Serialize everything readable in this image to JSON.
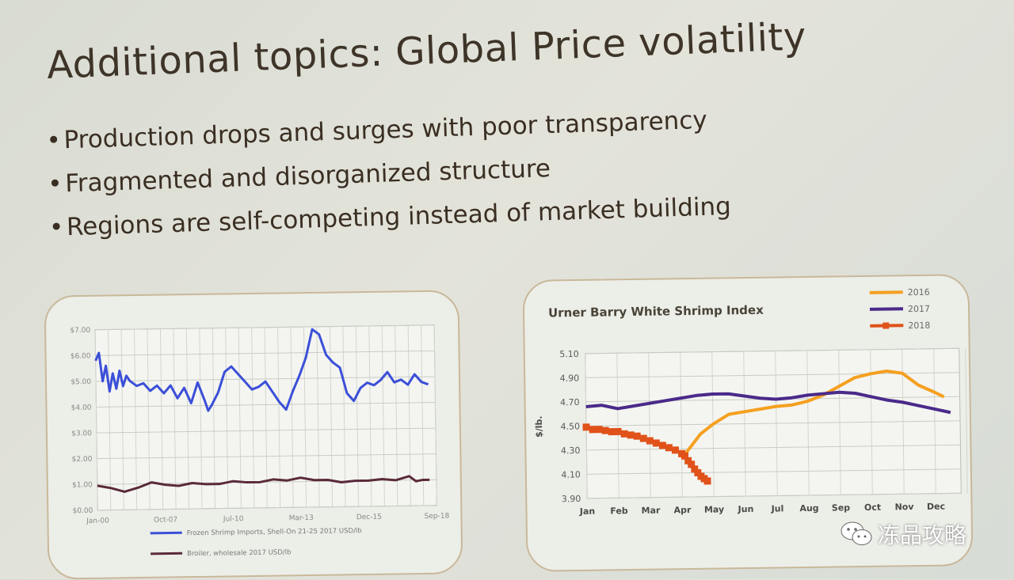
{
  "slide": {
    "title": "Additional topics: Global Price volatility",
    "bullets": [
      "Production drops and surges with poor transparency",
      "Fragmented and disorganized structure",
      "Regions are self-competing instead of market building"
    ]
  },
  "watermark": {
    "text": "冻品攻略",
    "icon": "wechat-icon"
  },
  "colors": {
    "blue": "#3b4fd8",
    "maroon": "#5a2a3a",
    "orange": "#f5a020",
    "purple": "#4a2a8a",
    "red": "#e0521a"
  },
  "chart_data": [
    {
      "type": "line",
      "title": "",
      "yticks": [
        "$7.00",
        "$6.00",
        "$5.00",
        "$4.00",
        "$3.00",
        "$2.00",
        "$1.00",
        "$0.00"
      ],
      "ylim": [
        0,
        7
      ],
      "xticks": [
        "Jan-00",
        "Oct-07",
        "Jul-10",
        "Mar-13",
        "Dec-15",
        "Sep-18"
      ],
      "xlim": [
        0,
        100
      ],
      "series": [
        {
          "name": "Frozen Shrimp Imports, Shell-On 21-25 2017 USD/lb",
          "color": "#3b4fd8",
          "x": [
            0,
            1,
            2,
            3,
            4,
            5,
            6,
            7,
            8,
            9,
            10,
            12,
            14,
            16,
            18,
            20,
            22,
            24,
            26,
            28,
            30,
            32,
            33,
            34,
            36,
            38,
            40,
            42,
            44,
            46,
            48,
            50,
            52,
            54,
            56,
            58,
            60,
            62,
            64,
            65,
            66,
            68,
            70,
            72,
            74,
            76,
            78,
            80,
            82,
            84,
            86,
            88,
            90,
            92,
            94,
            96,
            98
          ],
          "y": [
            5.8,
            6.1,
            5.0,
            5.6,
            4.6,
            5.3,
            4.7,
            5.4,
            4.8,
            5.2,
            5.0,
            4.8,
            4.9,
            4.6,
            4.8,
            4.5,
            4.8,
            4.3,
            4.7,
            4.1,
            4.9,
            4.2,
            3.8,
            4.0,
            4.5,
            5.3,
            5.5,
            5.2,
            4.9,
            4.6,
            4.7,
            4.9,
            4.5,
            4.1,
            3.8,
            4.5,
            5.1,
            5.8,
            6.9,
            6.8,
            6.7,
            5.9,
            5.6,
            5.4,
            4.4,
            4.1,
            4.6,
            4.8,
            4.7,
            4.9,
            5.2,
            4.8,
            4.9,
            4.7,
            5.1,
            4.8,
            4.7
          ]
        },
        {
          "name": "Broiler, wholesale 2017 USD/lb",
          "color": "#5a2a3a",
          "x": [
            0,
            4,
            8,
            12,
            16,
            20,
            24,
            28,
            32,
            36,
            40,
            44,
            48,
            52,
            56,
            60,
            64,
            68,
            72,
            76,
            80,
            84,
            88,
            92,
            94,
            96,
            98
          ],
          "y": [
            0.95,
            0.85,
            0.7,
            0.85,
            1.05,
            0.95,
            0.9,
            1.0,
            0.95,
            0.95,
            1.05,
            1.0,
            1.0,
            1.1,
            1.05,
            1.15,
            1.05,
            1.05,
            0.95,
            1.0,
            1.0,
            1.05,
            1.0,
            1.15,
            0.95,
            1.0,
            1.0
          ]
        }
      ]
    },
    {
      "type": "line",
      "title": "Urner Barry White Shrimp Index",
      "ylabel": "$/lb.",
      "yticks": [
        "5.10",
        "4.90",
        "4.70",
        "4.50",
        "4.30",
        "4.10",
        "3.90"
      ],
      "ylim": [
        3.9,
        5.1
      ],
      "categories": [
        "Jan",
        "Feb",
        "Mar",
        "Apr",
        "May",
        "Jun",
        "Jul",
        "Aug",
        "Sep",
        "Oct",
        "Nov",
        "Dec"
      ],
      "series": [
        {
          "name": "2016",
          "color": "#f5a020",
          "x": [
            3.0,
            3.3,
            3.6,
            4.0,
            4.5,
            5.0,
            5.5,
            6.0,
            6.5,
            7.0,
            7.5,
            8.0,
            8.5,
            9.0,
            9.5,
            10.0,
            10.5,
            11.0,
            11.3
          ],
          "y": [
            4.22,
            4.32,
            4.42,
            4.5,
            4.58,
            4.6,
            4.62,
            4.64,
            4.65,
            4.68,
            4.73,
            4.8,
            4.87,
            4.9,
            4.92,
            4.9,
            4.8,
            4.74,
            4.7
          ]
        },
        {
          "name": "2017",
          "color": "#4a2a8a",
          "x": [
            0,
            0.5,
            1,
            1.5,
            2,
            2.5,
            3,
            3.5,
            4,
            4.5,
            5,
            5.5,
            6,
            6.5,
            7,
            7.5,
            8,
            8.5,
            9,
            9.5,
            10,
            10.5,
            11,
            11.5
          ],
          "y": [
            4.66,
            4.67,
            4.64,
            4.66,
            4.68,
            4.7,
            4.72,
            4.74,
            4.75,
            4.75,
            4.73,
            4.71,
            4.7,
            4.71,
            4.73,
            4.74,
            4.75,
            4.74,
            4.71,
            4.68,
            4.66,
            4.63,
            4.6,
            4.57
          ]
        },
        {
          "name": "2018",
          "color": "#e0521a",
          "x": [
            0,
            0.2,
            0.4,
            0.6,
            0.8,
            1.0,
            1.2,
            1.4,
            1.6,
            1.8,
            2.0,
            2.2,
            2.4,
            2.6,
            2.8,
            3.0,
            3.1,
            3.2,
            3.3,
            3.4,
            3.5,
            3.6,
            3.7,
            3.8
          ],
          "y": [
            4.49,
            4.47,
            4.47,
            4.46,
            4.45,
            4.45,
            4.43,
            4.42,
            4.41,
            4.39,
            4.37,
            4.35,
            4.33,
            4.31,
            4.29,
            4.26,
            4.24,
            4.2,
            4.17,
            4.13,
            4.1,
            4.07,
            4.05,
            4.03
          ]
        }
      ]
    }
  ]
}
